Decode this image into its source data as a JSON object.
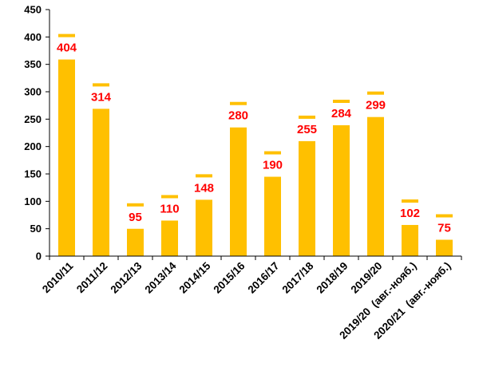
{
  "chart_data": {
    "type": "bar",
    "categories": [
      "2010/11",
      "2011/12",
      "2012/13",
      "2013/14",
      "2014/15",
      "2015/16",
      "2016/17",
      "2017/18",
      "2018/19",
      "2019/20",
      "2019/20  (авг.-нояб.)",
      "2020/21  (авг.-нояб.)"
    ],
    "values": [
      404,
      314,
      95,
      110,
      148,
      280,
      190,
      255,
      284,
      299,
      102,
      75
    ],
    "data_labels": [
      "404",
      "314",
      "95",
      "110",
      "148",
      "280",
      "190",
      "255",
      "284",
      "299",
      "102",
      "75"
    ],
    "ylim": [
      0,
      450
    ],
    "yticks": [
      "0",
      "50",
      "100",
      "150",
      "200",
      "250",
      "300",
      "350",
      "400",
      "450"
    ],
    "grid": false,
    "bar_color": "#FFC000",
    "label_color": "#FF0000"
  }
}
